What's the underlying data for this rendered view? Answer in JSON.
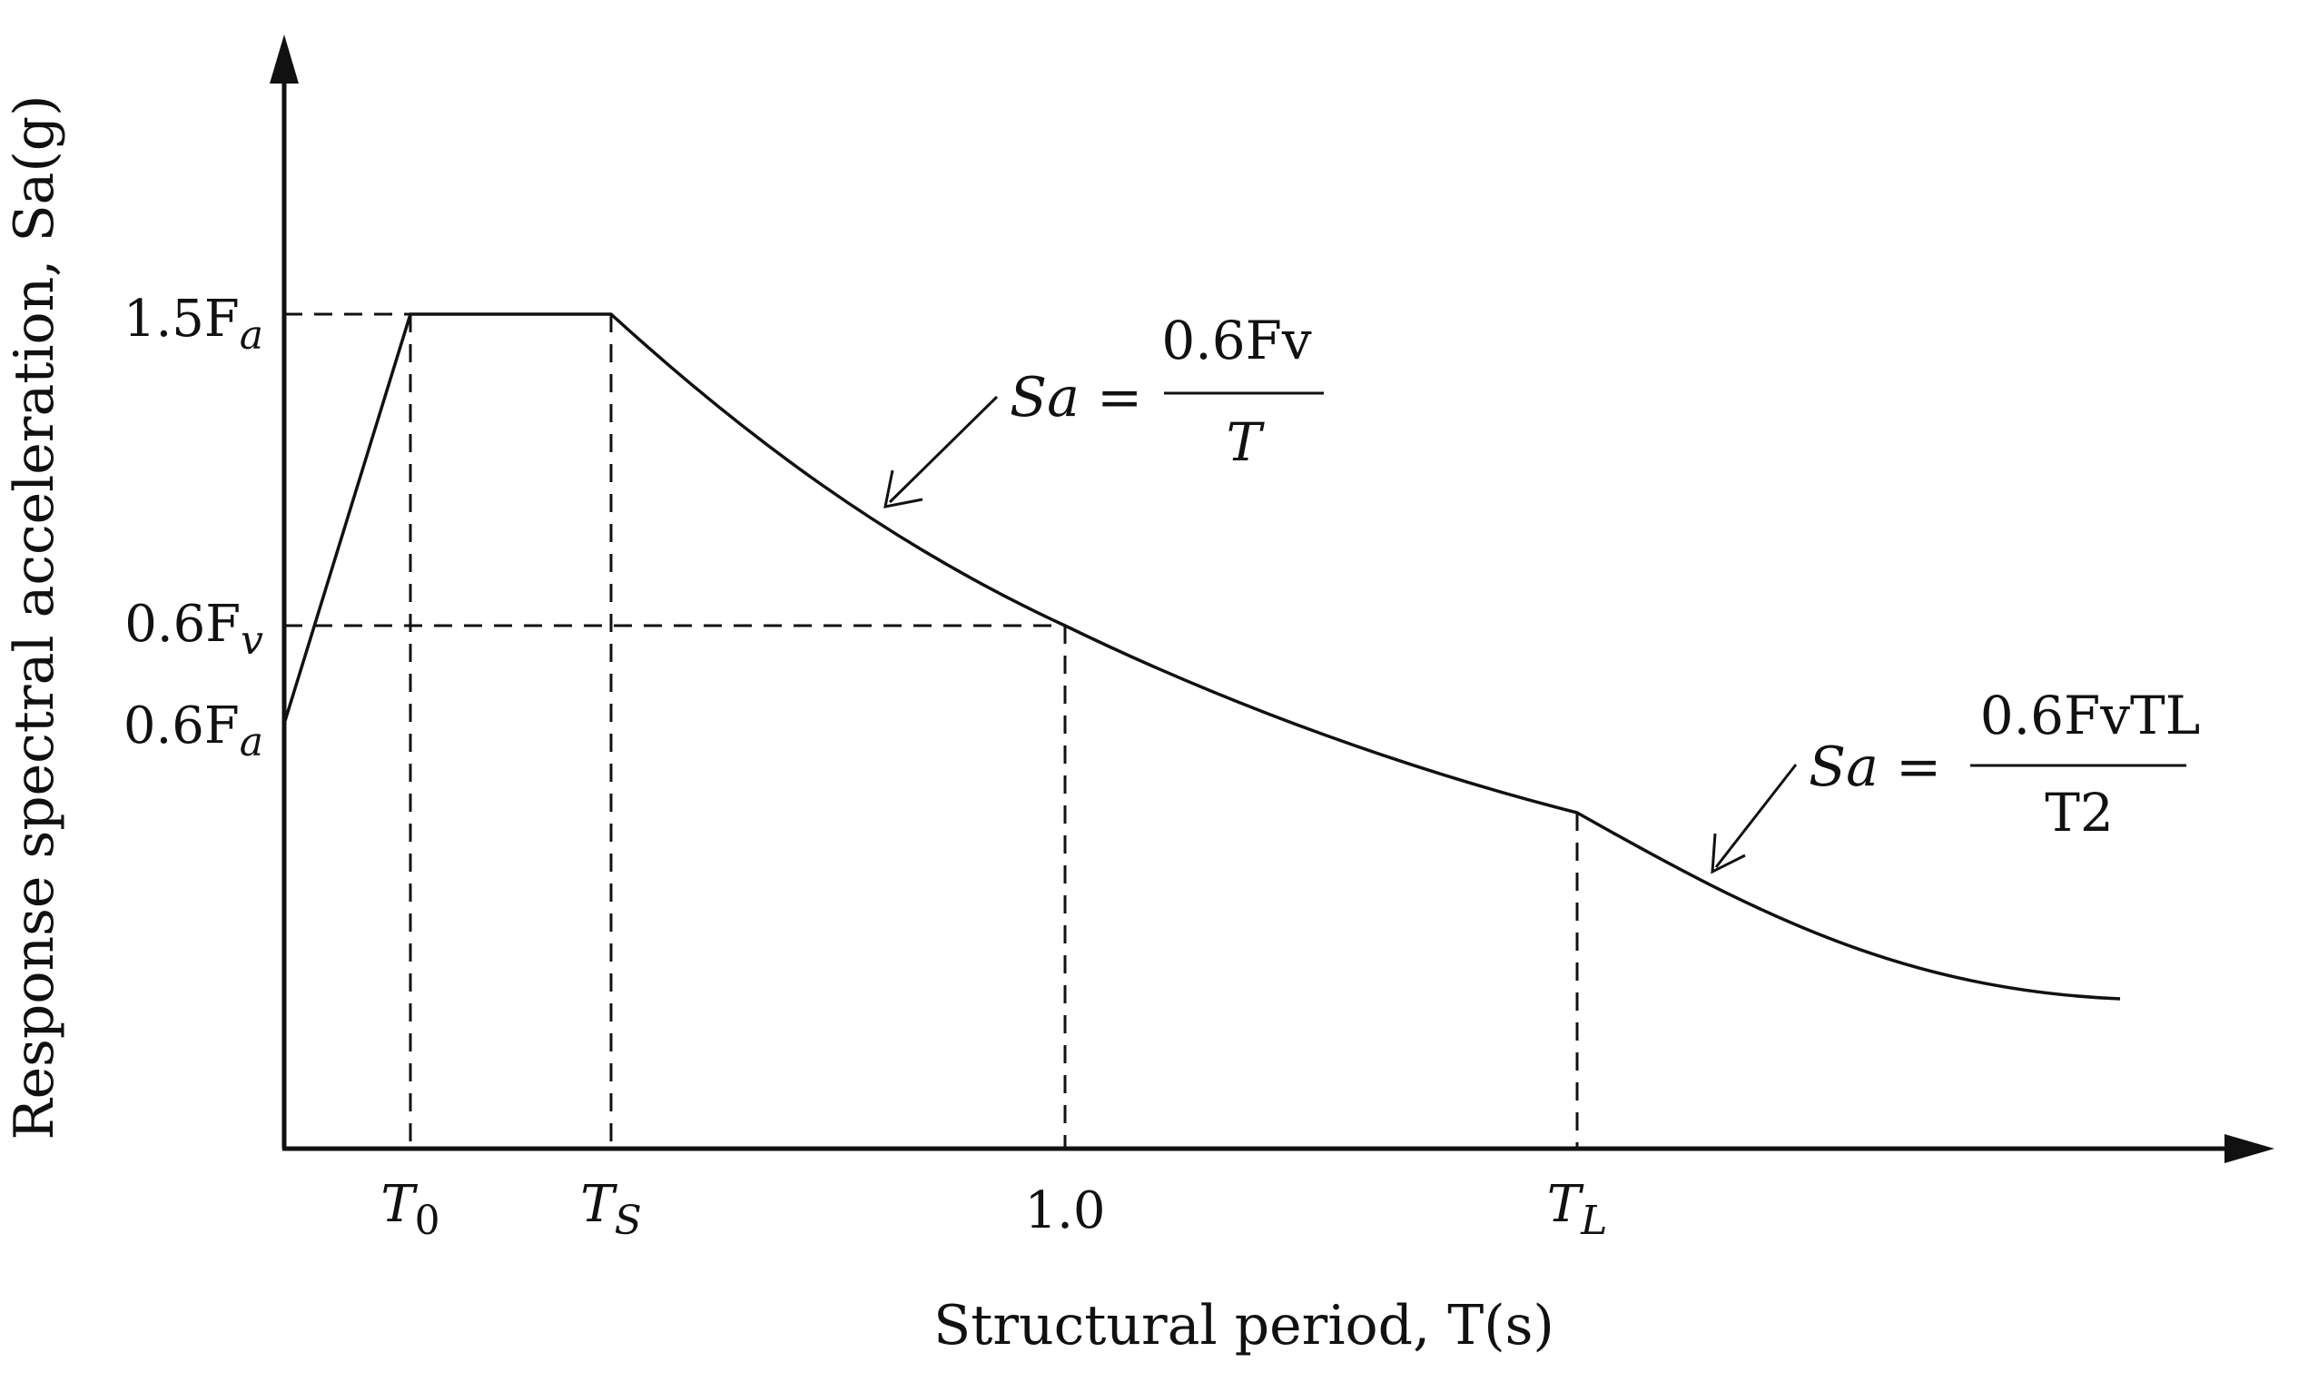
{
  "chart_data": {
    "type": "line",
    "title": "",
    "xlabel": "Structural period, T(s)",
    "ylabel": "Response spectral acceleration, Sa(g)",
    "x_tick_labels": [
      {
        "id": "T0",
        "base": "T",
        "sub": "0"
      },
      {
        "id": "TS",
        "base": "T",
        "sub": "S"
      },
      {
        "id": "one",
        "base": "1.0",
        "sub": ""
      },
      {
        "id": "TL",
        "base": "T",
        "sub": "L"
      }
    ],
    "y_tick_labels": [
      {
        "id": "1.5Fa",
        "base": "1.5F",
        "sub": "a"
      },
      {
        "id": "0.6Fv",
        "base": "0.6F",
        "sub": "v"
      },
      {
        "id": "0.6Fa",
        "base": "0.6F",
        "sub": "a"
      }
    ],
    "annotations": [
      {
        "id": "eq1",
        "lhs": "Sa =",
        "numerator": "0.6Fv",
        "denominator": "T"
      },
      {
        "id": "eq2",
        "lhs": "Sa =",
        "numerator": "0.6FvTL",
        "denominator": "T2"
      }
    ],
    "series": [
      {
        "x": [
          0.0,
          0.2,
          0.4,
          0.6,
          0.8,
          1.0,
          1.2,
          1.4,
          1.5,
          1.7,
          1.9,
          2.1
        ],
        "y": [
          0.6,
          1.5,
          1.5,
          1.0,
          0.75,
          0.6,
          0.5,
          0.43,
          0.4,
          0.31,
          0.25,
          0.2
        ]
      }
    ],
    "xlim": [
      0,
      2.2
    ],
    "ylim": [
      0,
      2.1
    ],
    "grid": false,
    "legend": "none"
  }
}
